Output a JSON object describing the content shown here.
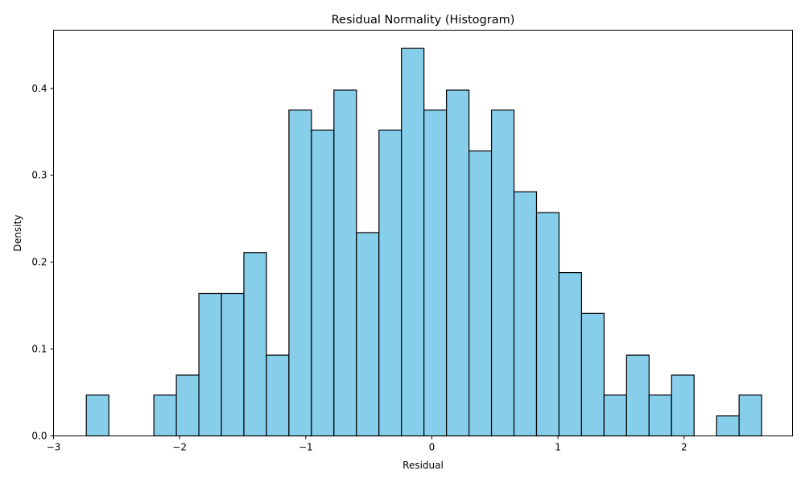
{
  "chart_data": {
    "type": "bar",
    "title": "Residual Normality (Histogram)",
    "xlabel": "Residual",
    "ylabel": "Density",
    "xlim": [
      -3.0,
      2.86
    ],
    "ylim": [
      0.0,
      0.467
    ],
    "xticks": [
      -3,
      -2,
      -1,
      0,
      1,
      2
    ],
    "xtick_labels": [
      "−3",
      "−2",
      "−1",
      "0",
      "1",
      "2"
    ],
    "yticks": [
      0.0,
      0.1,
      0.2,
      0.3,
      0.4
    ],
    "ytick_labels": [
      "0.0",
      "0.1",
      "0.2",
      "0.3",
      "0.4"
    ],
    "bin_start": -2.74,
    "bin_width": 0.1785,
    "values": [
      0.047,
      0.0,
      0.0,
      0.047,
      0.07,
      0.164,
      0.164,
      0.211,
      0.093,
      0.375,
      0.352,
      0.398,
      0.234,
      0.352,
      0.446,
      0.375,
      0.398,
      0.328,
      0.375,
      0.281,
      0.257,
      0.188,
      0.141,
      0.047,
      0.093,
      0.047,
      0.07,
      0.0,
      0.023,
      0.047
    ],
    "bar_color": "#87ceeb",
    "edge_color": "#000000",
    "grid": false,
    "legend": false
  }
}
